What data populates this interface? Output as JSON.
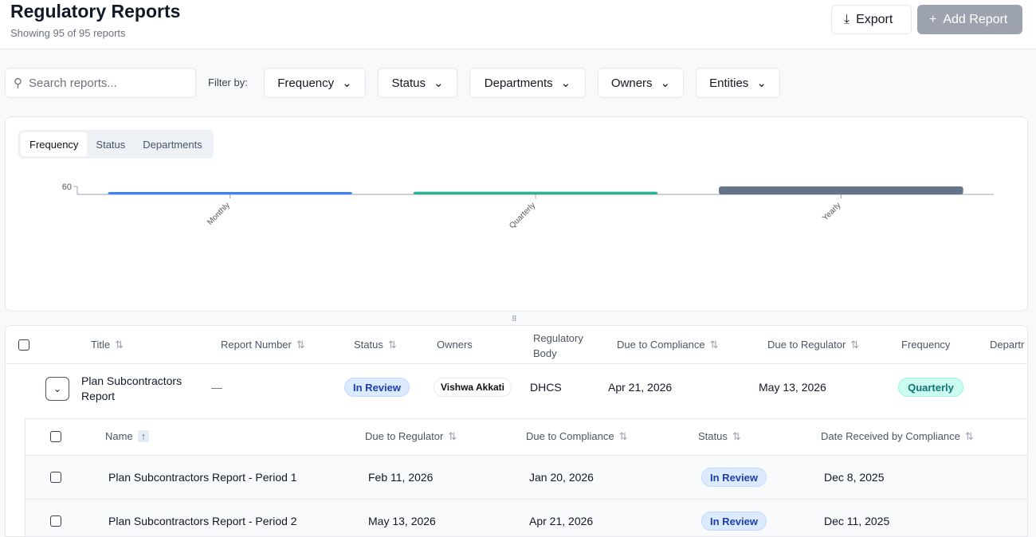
{
  "header": {
    "title": "Regulatory Reports",
    "subtitle": "Showing 95 of 95 reports",
    "export_label": "Export",
    "add_label": "Add Report"
  },
  "filters": {
    "search_placeholder": "Search reports...",
    "filter_by": "Filter by:",
    "dropdowns": [
      "Frequency",
      "Status",
      "Departments",
      "Owners",
      "Entities"
    ]
  },
  "chart_tabs": [
    "Frequency",
    "Status",
    "Departments"
  ],
  "chart_data": {
    "type": "bar",
    "categories": [
      "Monthly",
      "Quarterly",
      "Yearly"
    ],
    "values": [
      15,
      20,
      60
    ],
    "yticks": [
      60
    ],
    "colors": [
      "#3b82f6",
      "#2bb596",
      "#64748b"
    ]
  },
  "table": {
    "columns": [
      "Title",
      "Report Number",
      "Status",
      "Owners",
      "Regulatory Body",
      "Due to Compliance",
      "Due to Regulator",
      "Frequency",
      "Departr"
    ],
    "row": {
      "title": "Plan Subcontractors Report",
      "number": "—",
      "status": "In Review",
      "owner": "Vishwa Akkati",
      "body": "DHCS",
      "due_compliance": "Apr 21, 2026",
      "due_regulator": "May 13, 2026",
      "frequency": "Quarterly"
    }
  },
  "subtable": {
    "columns": [
      "Name",
      "Due to Regulator",
      "Due to Compliance",
      "Status",
      "Date Received by Compliance"
    ],
    "rows": [
      {
        "name": "Plan Subcontractors Report - Period 1",
        "due_regulator": "Feb 11, 2026",
        "due_compliance": "Jan 20, 2026",
        "status": "In Review",
        "received": "Dec 8, 2025"
      },
      {
        "name": "Plan Subcontractors Report - Period 2",
        "due_regulator": "May 13, 2026",
        "due_compliance": "Apr 21, 2026",
        "status": "In Review",
        "received": "Dec 11, 2025"
      }
    ]
  }
}
